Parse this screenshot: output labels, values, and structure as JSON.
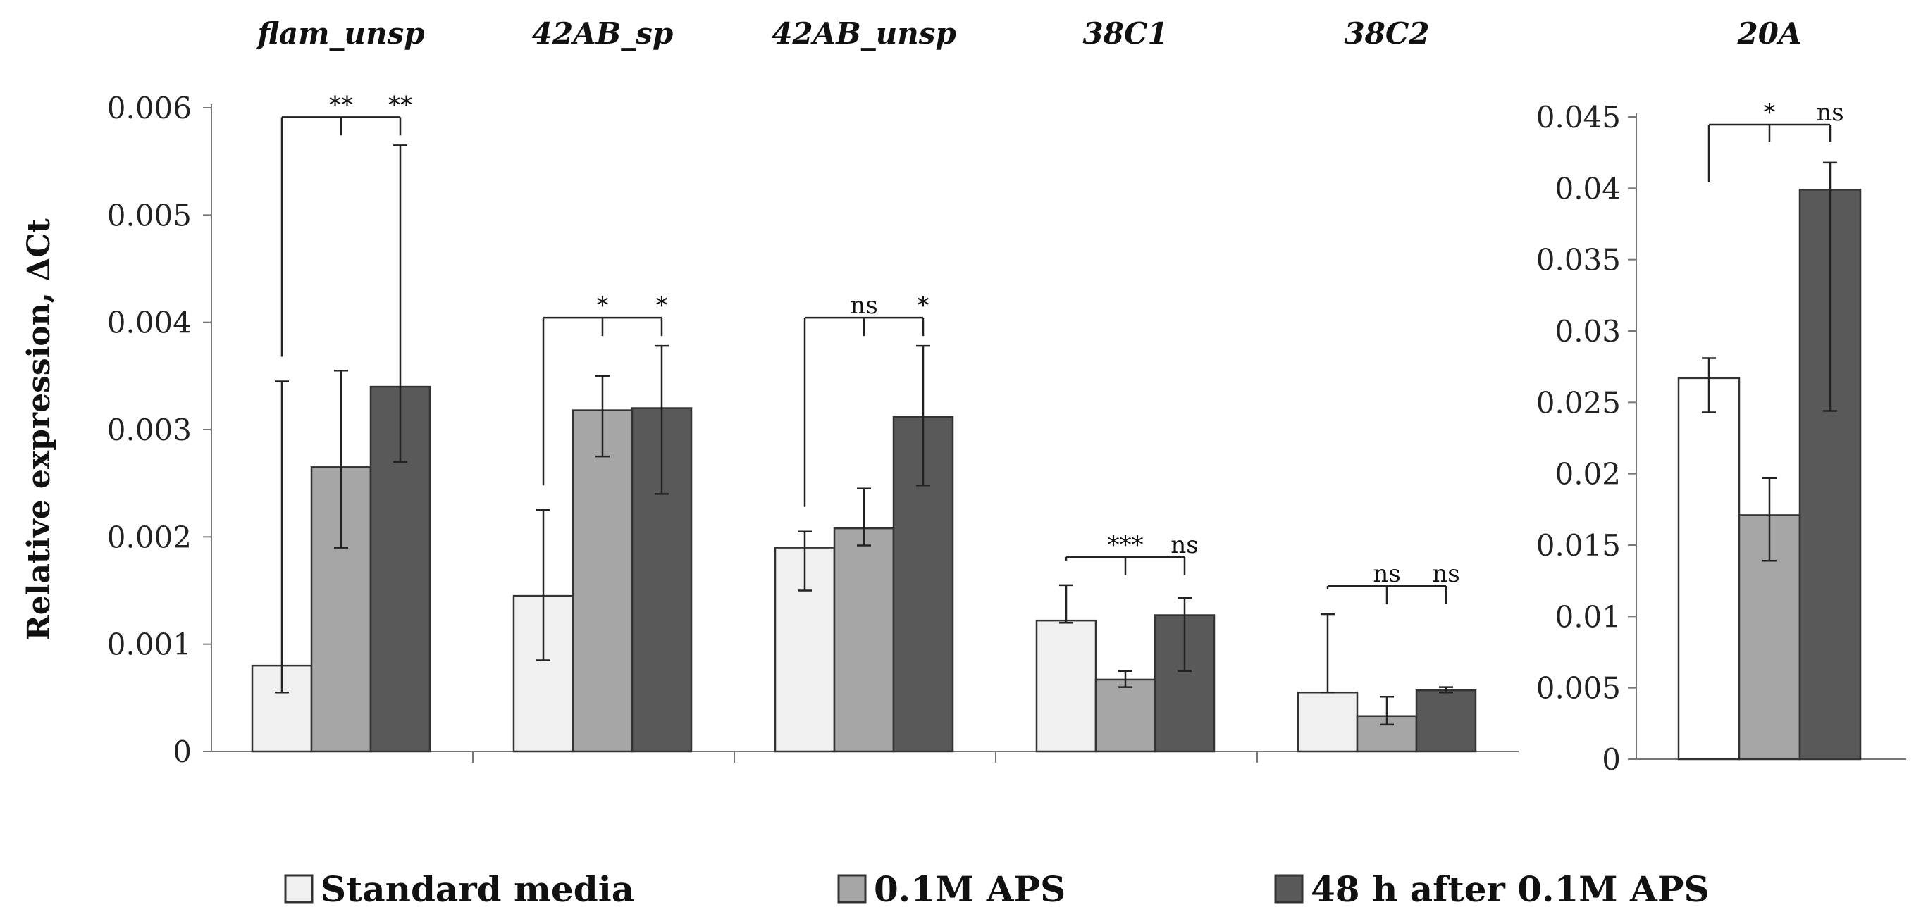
{
  "chart_data": [
    {
      "type": "bar",
      "ylabel": "Relative expression, ΔCt",
      "ylim": [
        0,
        0.006
      ],
      "yticks": [
        "0",
        "0.001",
        "0.002",
        "0.003",
        "0.004",
        "0.005",
        "0.006"
      ],
      "yticks_values": [
        0,
        0.001,
        0.002,
        0.003,
        0.004,
        0.005,
        0.006
      ],
      "series_names": [
        "Standard media",
        "0.1M APS",
        "48 h after 0.1M APS"
      ],
      "groups": [
        {
          "title": "flam_unsp",
          "values": [
            0.0008,
            0.00265,
            0.0034
          ],
          "error_low": [
            0.00055,
            0.0019,
            0.0027
          ],
          "error_high": [
            0.00345,
            0.00355,
            0.00565
          ],
          "sig_labels": [
            "**",
            "**"
          ]
        },
        {
          "title": "42AB_sp",
          "values": [
            0.00145,
            0.00318,
            0.0032
          ],
          "error_low": [
            0.00085,
            0.00275,
            0.0024
          ],
          "error_high": [
            0.00225,
            0.0035,
            0.00378
          ],
          "sig_labels": [
            "*",
            "*"
          ]
        },
        {
          "title": "42AB_unsp",
          "values": [
            0.0019,
            0.00208,
            0.00312
          ],
          "error_low": [
            0.0015,
            0.00192,
            0.00248
          ],
          "error_high": [
            0.00205,
            0.00245,
            0.00378
          ],
          "sig_labels": [
            "ns",
            "*"
          ]
        },
        {
          "title": "38C1",
          "values": [
            0.00122,
            0.00067,
            0.00127
          ],
          "error_low": [
            0.0012,
            0.0006,
            0.00075
          ],
          "error_high": [
            0.00155,
            0.00075,
            0.00143
          ],
          "sig_labels": [
            "***",
            "ns"
          ]
        },
        {
          "title": "38C2",
          "values": [
            0.00055,
            0.00033,
            0.00057
          ],
          "error_low": [
            0.00055,
            0.00025,
            0.00055
          ],
          "error_high": [
            0.00128,
            0.00051,
            0.0006
          ],
          "sig_labels": [
            "ns",
            "ns"
          ]
        }
      ]
    },
    {
      "type": "bar",
      "title": "20A",
      "ylim": [
        0,
        0.045
      ],
      "yticks": [
        "0",
        "0.005",
        "0.01",
        "0.015",
        "0.02",
        "0.025",
        "0.03",
        "0.035",
        "0.04",
        "0.045"
      ],
      "yticks_values": [
        0,
        0.005,
        0.01,
        0.015,
        0.02,
        0.025,
        0.03,
        0.035,
        0.04,
        0.045
      ],
      "series_names": [
        "Standard media",
        "0.1M APS",
        "48 h after 0.1M APS"
      ],
      "values": [
        0.0267,
        0.0171,
        0.0399
      ],
      "error_low": [
        0.0243,
        0.0139,
        0.0244
      ],
      "error_high": [
        0.0281,
        0.0197,
        0.0418
      ],
      "sig_labels": [
        "*",
        "ns"
      ]
    }
  ],
  "legend": {
    "items": [
      "Standard media",
      "0.1M APS",
      "48 h after 0.1M APS"
    ],
    "colors": [
      "#f0f0f0",
      "#a6a6a6",
      "#595959"
    ],
    "right_panel_colors": [
      "#ffffff",
      "#a6a6a6",
      "#595959"
    ]
  }
}
